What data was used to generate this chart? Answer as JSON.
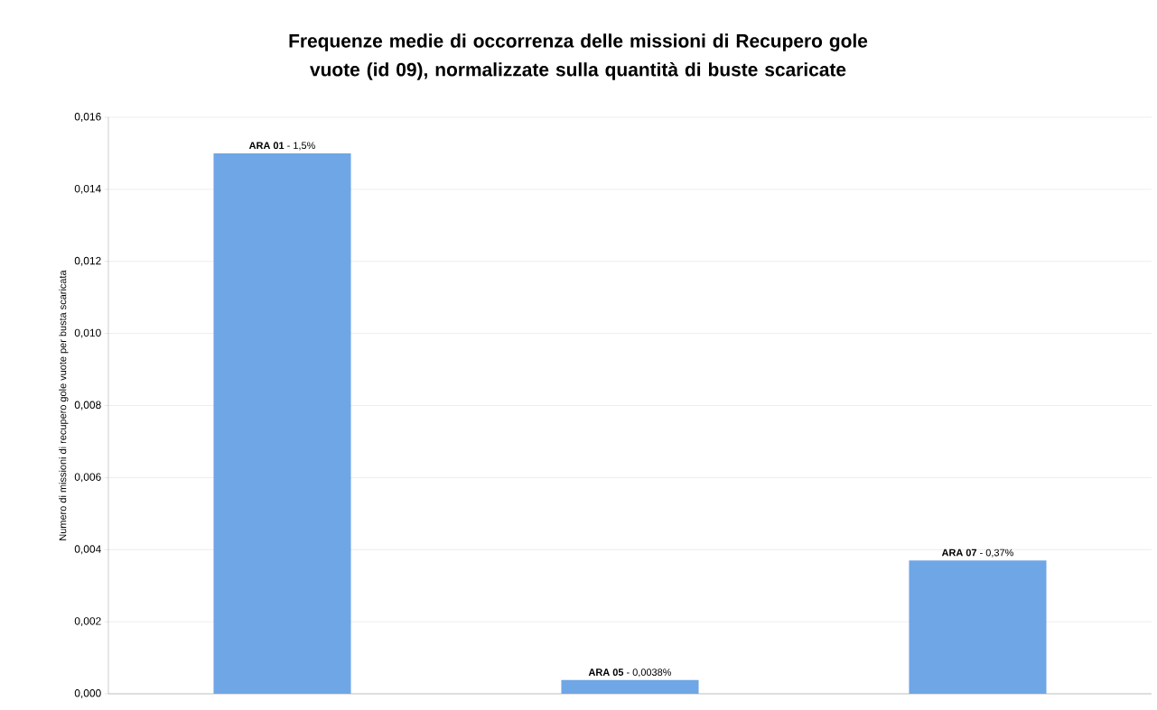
{
  "chart_data": {
    "type": "bar",
    "title": "Frequenze medie di occorrenza delle missioni di Recupero gole vuote (id 09), normalizzate sulla quantità di buste scaricate",
    "ylabel": "Numero di missioni di recupero gole vuote per busta scaricata",
    "categories": [
      null,
      null,
      null
    ],
    "values": [
      0.015,
      0.00038,
      0.0037
    ],
    "annotations": [
      {
        "text": "**ARA 01** - 1,5%",
        "y": 0.015
      },
      {
        "text": "**ARA 05** - 0,0038%",
        "y": 0.00038
      },
      {
        "text": "**ARA 07** - 0,37%",
        "y": 0.0037
      }
    ],
    "color": "#6fa6e6",
    "ylim": [
      0,
      0.016
    ],
    "yticks": [
      {
        "value": 0,
        "label": "0,000"
      },
      {
        "value": 0.002,
        "label": "0,002"
      },
      {
        "value": 0.004,
        "label": "0,004"
      },
      {
        "value": 0.006,
        "label": "0,006"
      },
      {
        "value": 0.008,
        "label": "0,008"
      },
      {
        "value": 0.01,
        "label": "0,010"
      },
      {
        "value": 0.012,
        "label": "0,012"
      },
      {
        "value": 0.014,
        "label": "0,014"
      },
      {
        "value": 0.016,
        "label": "0,016"
      }
    ],
    "grid": "y"
  }
}
